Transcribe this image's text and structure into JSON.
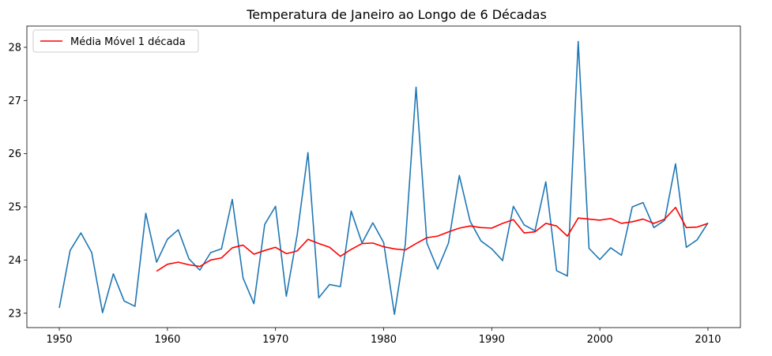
{
  "chart_data": {
    "type": "line",
    "title": "Temperatura de Janeiro ao Longo de 6 Décadas",
    "xlabel": "",
    "ylabel": "",
    "xlim": [
      1947,
      2013
    ],
    "ylim": [
      22.73,
      28.4
    ],
    "xticks": [
      1950,
      1960,
      1970,
      1980,
      1990,
      2000,
      2010
    ],
    "yticks": [
      23,
      24,
      25,
      26,
      27,
      28
    ],
    "grid": false,
    "legend_position": "top-left",
    "x": [
      1950,
      1951,
      1952,
      1953,
      1954,
      1955,
      1956,
      1957,
      1958,
      1959,
      1960,
      1961,
      1962,
      1963,
      1964,
      1965,
      1966,
      1967,
      1968,
      1969,
      1970,
      1971,
      1972,
      1973,
      1974,
      1975,
      1976,
      1977,
      1978,
      1979,
      1980,
      1981,
      1982,
      1983,
      1984,
      1985,
      1986,
      1987,
      1988,
      1989,
      1990,
      1991,
      1992,
      1993,
      1994,
      1995,
      1996,
      1997,
      1998,
      1999,
      2000,
      2001,
      2002,
      2003,
      2004,
      2005,
      2006,
      2007,
      2008,
      2009,
      2010
    ],
    "series": [
      {
        "color": "#1f77b4",
        "values": [
          23.1,
          24.18,
          24.51,
          24.14,
          23.01,
          23.74,
          23.23,
          23.13,
          24.88,
          23.96,
          24.39,
          24.57,
          24.02,
          23.81,
          24.14,
          24.21,
          25.14,
          23.66,
          23.18,
          24.67,
          25.01,
          23.32,
          24.47,
          26.02,
          23.29,
          23.54,
          23.5,
          24.92,
          24.32,
          24.7,
          24.33,
          22.98,
          24.29,
          27.25,
          24.32,
          23.83,
          24.32,
          25.59,
          24.73,
          24.36,
          24.21,
          23.99,
          25.01,
          24.66,
          24.55,
          25.47,
          23.8,
          23.7,
          28.11,
          24.22,
          24.01,
          24.23,
          24.09,
          25.0,
          25.08,
          24.61,
          24.75,
          25.81,
          24.24,
          24.38,
          24.7
        ]
      },
      {
        "name": "Média Móvel 1 década",
        "color": "#ff0000",
        "values": [
          null,
          null,
          null,
          null,
          null,
          null,
          null,
          null,
          null,
          23.79,
          23.92,
          23.96,
          23.91,
          23.88,
          24.0,
          24.04,
          24.23,
          24.28,
          24.11,
          24.18,
          24.24,
          24.12,
          24.17,
          24.39,
          24.31,
          24.24,
          24.07,
          24.2,
          24.31,
          24.32,
          24.25,
          24.21,
          24.19,
          24.31,
          24.42,
          24.45,
          24.53,
          24.6,
          24.64,
          24.61,
          24.6,
          24.69,
          24.76,
          24.51,
          24.53,
          24.69,
          24.64,
          24.45,
          24.79,
          24.77,
          24.75,
          24.78,
          24.69,
          24.72,
          24.77,
          24.69,
          24.77,
          24.99,
          24.61,
          24.62,
          24.69
        ]
      }
    ]
  }
}
